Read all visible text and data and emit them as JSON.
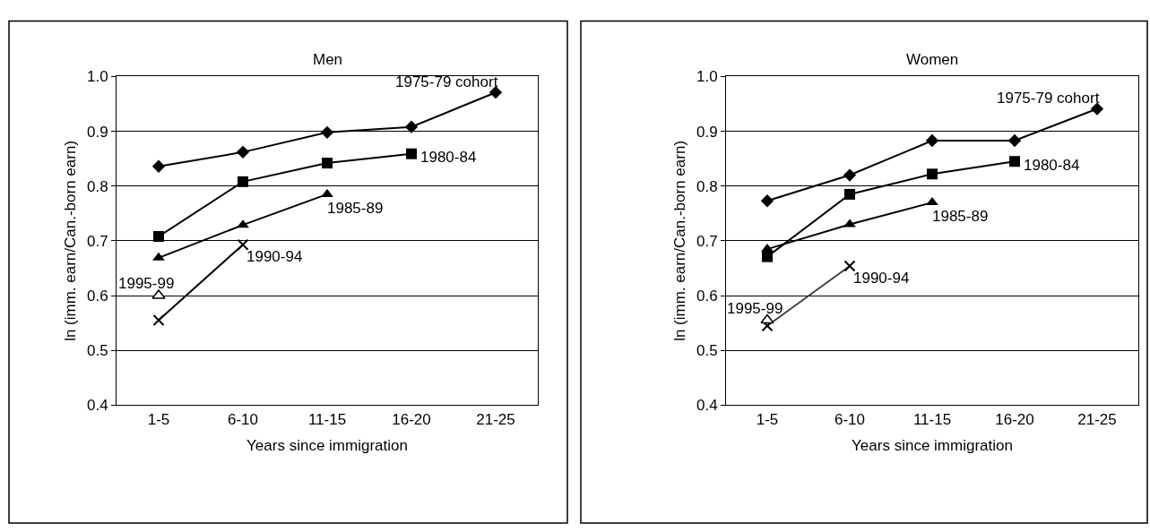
{
  "chart_data": [
    {
      "type": "line",
      "title": "Men",
      "xlabel": "Years since immigration",
      "ylabel": "ln (imm. earn/Can.-born earn)",
      "categories": [
        "1-5",
        "6-10",
        "11-15",
        "16-20",
        "21-25"
      ],
      "ylim": [
        0.4,
        1.0
      ],
      "yticks": [
        {
          "value": 0.4,
          "label": "0.4"
        },
        {
          "value": 0.5,
          "label": "0.5"
        },
        {
          "value": 0.6,
          "label": "0.6"
        },
        {
          "value": 0.7,
          "label": "0.7"
        },
        {
          "value": 0.8,
          "label": "0.8"
        },
        {
          "value": 0.9,
          "label": "0.9"
        },
        {
          "value": 1.0,
          "label": "1.0"
        }
      ],
      "grid": "y",
      "line_style": "solid",
      "series": [
        {
          "name": "1975-79 cohort",
          "color": "#000000",
          "marker": "diamond",
          "values": [
            0.836,
            0.862,
            0.898,
            0.908,
            0.971
          ]
        },
        {
          "name": "1980-84",
          "color": "#000000",
          "marker": "square",
          "values": [
            0.708,
            0.808,
            0.842,
            0.859,
            null
          ]
        },
        {
          "name": "1985-89",
          "color": "#000000",
          "marker": "triangle",
          "values": [
            0.669,
            0.729,
            0.785,
            null,
            null
          ]
        },
        {
          "name": "1990-94",
          "color": "#000000",
          "marker": "cross",
          "values": [
            0.555,
            0.693,
            null,
            null,
            null
          ]
        },
        {
          "name": "1995-99",
          "color": "#ffffff",
          "marker": "triangle",
          "values": [
            0.6,
            null,
            null,
            null,
            null
          ]
        }
      ]
    },
    {
      "type": "line",
      "title": "Women",
      "xlabel": "Years since immigration",
      "ylabel": "ln (imm. earn/Can.-born earn)",
      "categories": [
        "1-5",
        "6-10",
        "11-15",
        "16-20",
        "21-25"
      ],
      "ylim": [
        0.4,
        1.0
      ],
      "yticks": [
        {
          "value": 0.4,
          "label": "0.4"
        },
        {
          "value": 0.5,
          "label": "0.5"
        },
        {
          "value": 0.6,
          "label": "0.6"
        },
        {
          "value": 0.7,
          "label": "0.7"
        },
        {
          "value": 0.8,
          "label": "0.8"
        },
        {
          "value": 0.9,
          "label": "0.9"
        },
        {
          "value": 1.0,
          "label": "1.0"
        }
      ],
      "grid": "y",
      "line_style": "solid",
      "series": [
        {
          "name": "1975-79 cohort",
          "color": "#000000",
          "marker": "diamond",
          "values": [
            0.773,
            0.82,
            0.883,
            0.883,
            0.941
          ]
        },
        {
          "name": "1980-84",
          "color": "#000000",
          "marker": "square",
          "values": [
            0.671,
            0.785,
            0.822,
            0.845,
            null
          ]
        },
        {
          "name": "1985-89",
          "color": "#000000",
          "marker": "triangle",
          "values": [
            0.685,
            0.73,
            0.77,
            null,
            null
          ]
        },
        {
          "name": "1990-94",
          "color": "#404040",
          "marker": "cross",
          "values": [
            0.545,
            0.654,
            null,
            null,
            null
          ]
        },
        {
          "name": "1995-99",
          "color": "#ffffff",
          "marker": "triangle",
          "values": [
            0.555,
            null,
            null,
            null,
            null
          ]
        }
      ]
    }
  ]
}
